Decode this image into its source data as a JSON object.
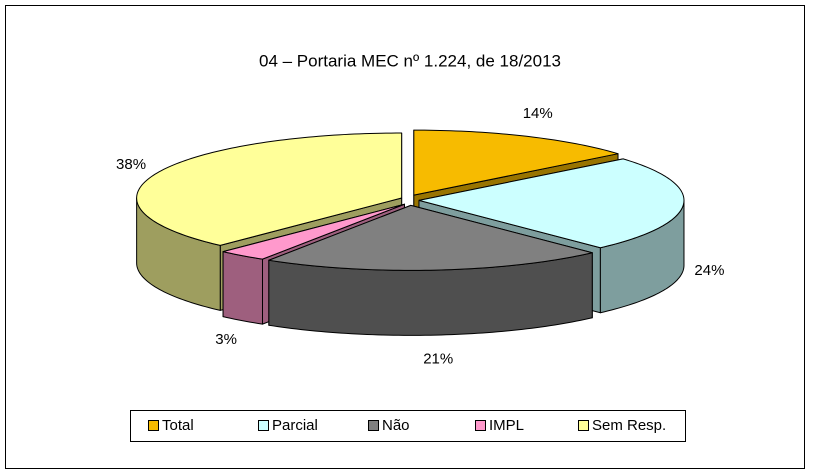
{
  "chart_data": {
    "type": "pie3d",
    "title": "04 – Portaria MEC nº 1.224, de 18/2013",
    "categories": [
      "Total",
      "Parcial",
      "Não",
      "IMPL",
      "Sem Resp."
    ],
    "values": [
      14,
      24,
      21,
      3,
      38
    ],
    "value_labels": [
      "14%",
      "24%",
      "21%",
      "3%",
      "38%"
    ],
    "colors": [
      "#f7bb00",
      "#ccffff",
      "#808080",
      "#ff99cc",
      "#ffff99"
    ],
    "legend": "bottom"
  }
}
